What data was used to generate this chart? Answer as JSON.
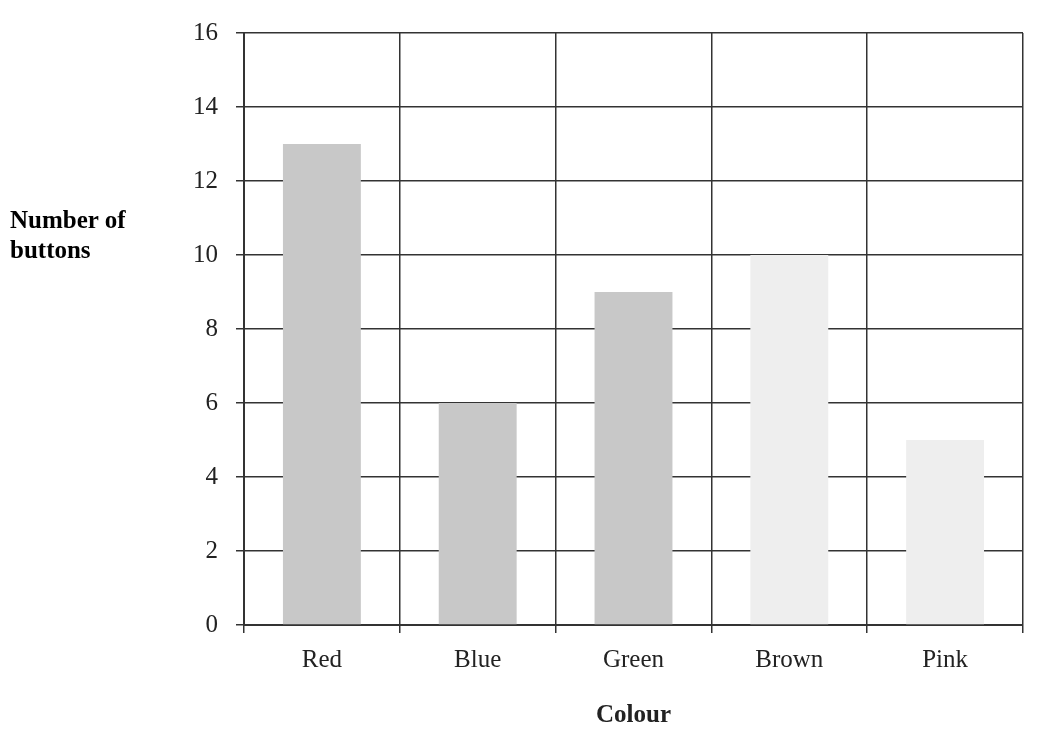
{
  "chart_data": {
    "type": "bar",
    "xlabel": "Colour",
    "ylabel": "Number of buttons",
    "categories": [
      "Red",
      "Blue",
      "Green",
      "Brown",
      "Pink"
    ],
    "values": [
      13,
      6,
      9,
      10,
      5
    ],
    "colors": [
      "#c8c8c8",
      "#c8c8c8",
      "#c8c8c8",
      "#eeeeee",
      "#eeeeee"
    ],
    "ylim": [
      0,
      16
    ],
    "yticks": [
      0,
      2,
      4,
      6,
      8,
      10,
      12,
      14,
      16
    ],
    "grid": true,
    "legend": false
  }
}
